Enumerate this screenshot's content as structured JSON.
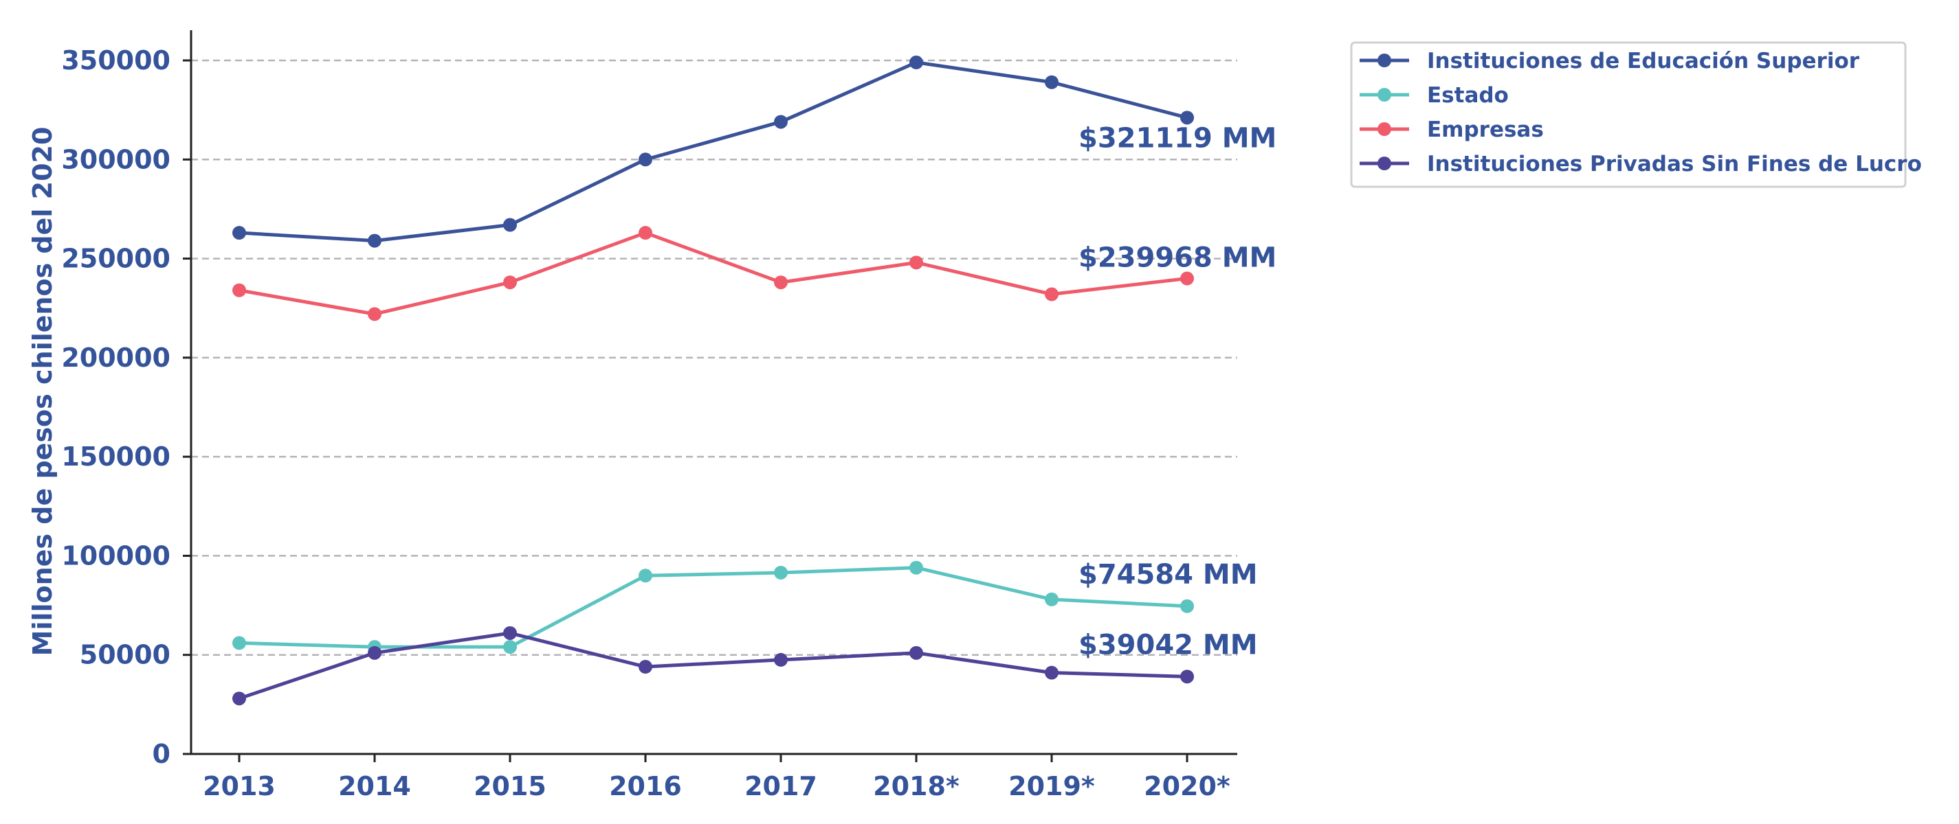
{
  "chart_data": {
    "type": "line",
    "ylabel": "Millones de pesos chilenos del 2020",
    "xlabel": "",
    "categories": [
      "2013",
      "2014",
      "2015",
      "2016",
      "2017",
      "2018*",
      "2019*",
      "2020*"
    ],
    "ylim": [
      0,
      350000
    ],
    "yticks": [
      "0",
      "50000",
      "100000",
      "150000",
      "200000",
      "250000",
      "300000",
      "350000"
    ],
    "ytick_values": [
      0,
      50000,
      100000,
      150000,
      200000,
      250000,
      300000,
      350000
    ],
    "grid": true,
    "legend_position": "top-right",
    "series": [
      {
        "name": "Instituciones de Educación Superior",
        "color": "#3a5297",
        "values": [
          263000,
          259000,
          267000,
          300000,
          319000,
          349000,
          339000,
          321119
        ],
        "end_label": "$321119 MM"
      },
      {
        "name": "Estado",
        "color": "#5cc4c0",
        "values": [
          56000,
          54000,
          54000,
          90000,
          91500,
          94000,
          78000,
          74584
        ],
        "end_label": "$74584 MM"
      },
      {
        "name": "Empresas",
        "color": "#ef5b6a",
        "values": [
          234000,
          222000,
          238000,
          263000,
          238000,
          248000,
          232000,
          239968
        ],
        "end_label": "$239968 MM"
      },
      {
        "name": "Instituciones Privadas Sin Fines de Lucro",
        "color": "#4e4396",
        "values": [
          28000,
          51000,
          61000,
          44000,
          47500,
          51000,
          41000,
          39042
        ],
        "end_label": "$39042 MM"
      }
    ],
    "text_color": "#34539a"
  }
}
